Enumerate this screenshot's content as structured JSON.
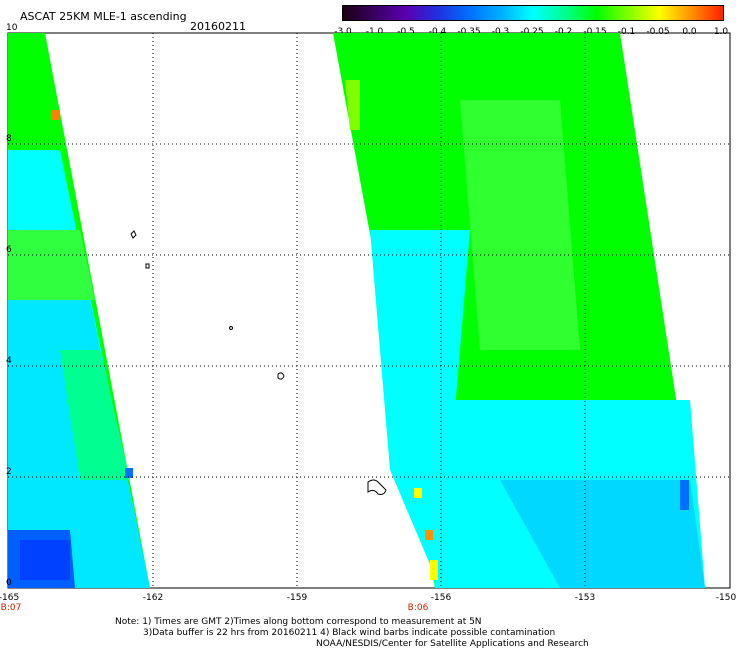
{
  "header": {
    "title": "ASCAT 25KM MLE-1 ascending",
    "date": "20160211"
  },
  "colorbar": {
    "labels": [
      "-3.0",
      "-1.0",
      "-0.5",
      "-0.4",
      "-0.35",
      "-0.3",
      "-0.25",
      "-0.2",
      "-0.15",
      "-0.1",
      "-0.05",
      "0.0",
      "1.0"
    ],
    "colors": [
      "#1a0010",
      "#3a0060",
      "#5a00b0",
      "#2030e0",
      "#0070ff",
      "#00b0ff",
      "#00ffff",
      "#00ff90",
      "#00ff00",
      "#80ff00",
      "#ffff00",
      "#ff9000",
      "#ff2000"
    ]
  },
  "axes": {
    "y_ticks": [
      "0",
      "2",
      "4",
      "6",
      "8",
      "10"
    ],
    "x_ticks": [
      "-165",
      "-162",
      "-159",
      "-156",
      "-153",
      "-150"
    ],
    "time_labels": [
      "B:07",
      "B:06"
    ]
  },
  "notes": {
    "line1": "Note: 1) Times are GMT 2)Times along bottom correspond to measurement at 5N",
    "line2": "3)Data buffer is 22 hrs from 20160211 4) Black wind barbs indicate possible contamination",
    "line3": "NOAA/NESDIS/Center for Satellite Applications and Research"
  },
  "style": {
    "green": "#00ff00",
    "cyan": "#00ffff",
    "grid": "#000000",
    "time_label_color": "#cc2200"
  }
}
